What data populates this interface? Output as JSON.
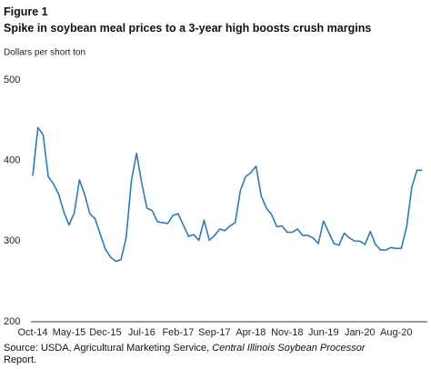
{
  "chart_data": {
    "type": "line",
    "figure_label": "Figure 1",
    "title": "Spike in soybean meal prices to a 3-year high boosts crush margins",
    "y_axis_label": "Dollars per short ton",
    "categories": [
      "Oct-14",
      null,
      null,
      null,
      null,
      null,
      null,
      "May-15",
      null,
      null,
      null,
      null,
      null,
      null,
      "Dec-15",
      null,
      null,
      null,
      null,
      null,
      null,
      "Jul-16",
      null,
      null,
      null,
      null,
      null,
      null,
      "Feb-17",
      null,
      null,
      null,
      null,
      null,
      null,
      "Sep-17",
      null,
      null,
      null,
      null,
      null,
      null,
      "Apr-18",
      null,
      null,
      null,
      null,
      null,
      null,
      "Nov-18",
      null,
      null,
      null,
      null,
      null,
      null,
      "Jun-19",
      null,
      null,
      null,
      null,
      null,
      null,
      "Jan-20",
      null,
      null,
      null,
      null,
      null,
      null,
      "Aug-20",
      null,
      null,
      null,
      null,
      null
    ],
    "series": [
      {
        "name": "Soybean meal price",
        "color": "#2b7bba",
        "values": [
          381,
          441,
          432,
          380,
          371,
          358,
          336,
          320,
          335,
          376,
          358,
          334,
          328,
          309,
          290,
          280,
          275,
          277,
          305,
          375,
          409,
          372,
          341,
          338,
          324,
          323,
          322,
          332,
          334,
          320,
          306,
          308,
          301,
          326,
          301,
          307,
          315,
          313,
          319,
          323,
          363,
          380,
          385,
          393,
          356,
          341,
          333,
          318,
          319,
          311,
          311,
          315,
          307,
          307,
          304,
          297,
          325,
          311,
          297,
          295,
          310,
          304,
          300,
          300,
          296,
          312,
          296,
          289,
          289,
          292,
          291,
          291,
          318,
          367,
          388,
          388
        ]
      }
    ],
    "ylim": [
      200,
      500
    ],
    "yticks": [
      200,
      300,
      400,
      500
    ],
    "grid": false,
    "source_prefix": "Source: USDA, Agricultural Marketing Service, ",
    "source_italic": "Central Illinois Soybean Processor",
    "source_suffix": " Report."
  }
}
